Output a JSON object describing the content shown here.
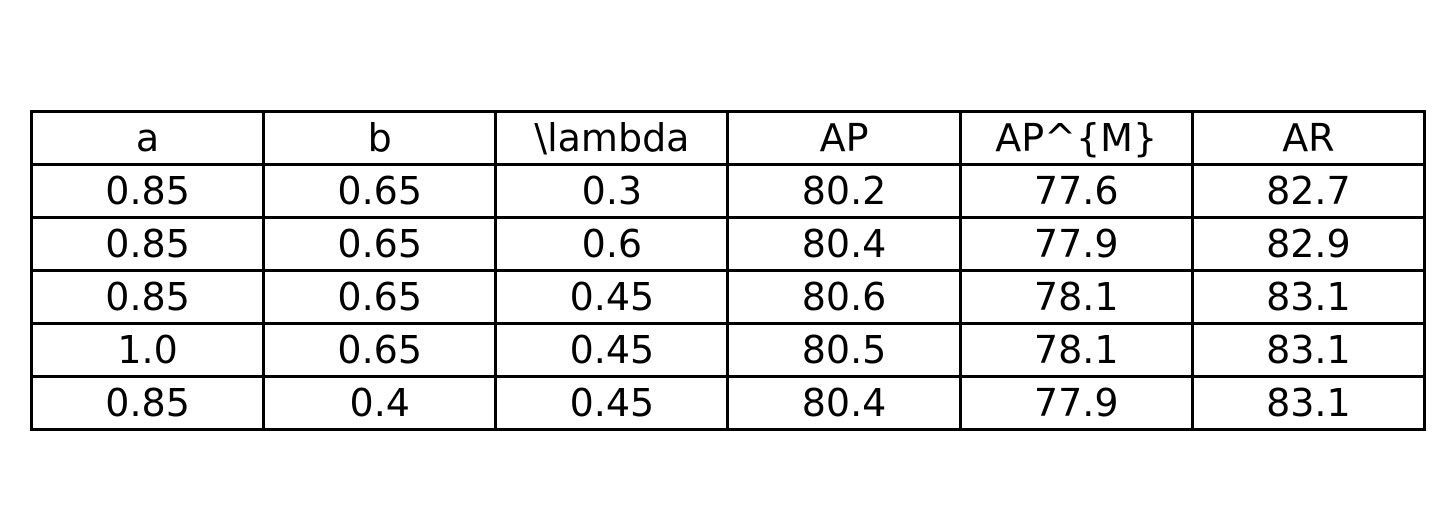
{
  "chart_data": {
    "type": "table",
    "columns": [
      "a",
      "b",
      "\\lambda",
      "AP",
      "AP^{M}",
      "AR"
    ],
    "rows": [
      [
        "0.85",
        "0.65",
        "0.3",
        "80.2",
        "77.6",
        "82.7"
      ],
      [
        "0.85",
        "0.65",
        "0.6",
        "80.4",
        "77.9",
        "82.9"
      ],
      [
        "0.85",
        "0.65",
        "0.45",
        "80.6",
        "78.1",
        "83.1"
      ],
      [
        "1.0",
        "0.65",
        "0.45",
        "80.5",
        "78.1",
        "83.1"
      ],
      [
        "0.85",
        "0.4",
        "0.45",
        "80.4",
        "77.9",
        "83.1"
      ]
    ]
  }
}
